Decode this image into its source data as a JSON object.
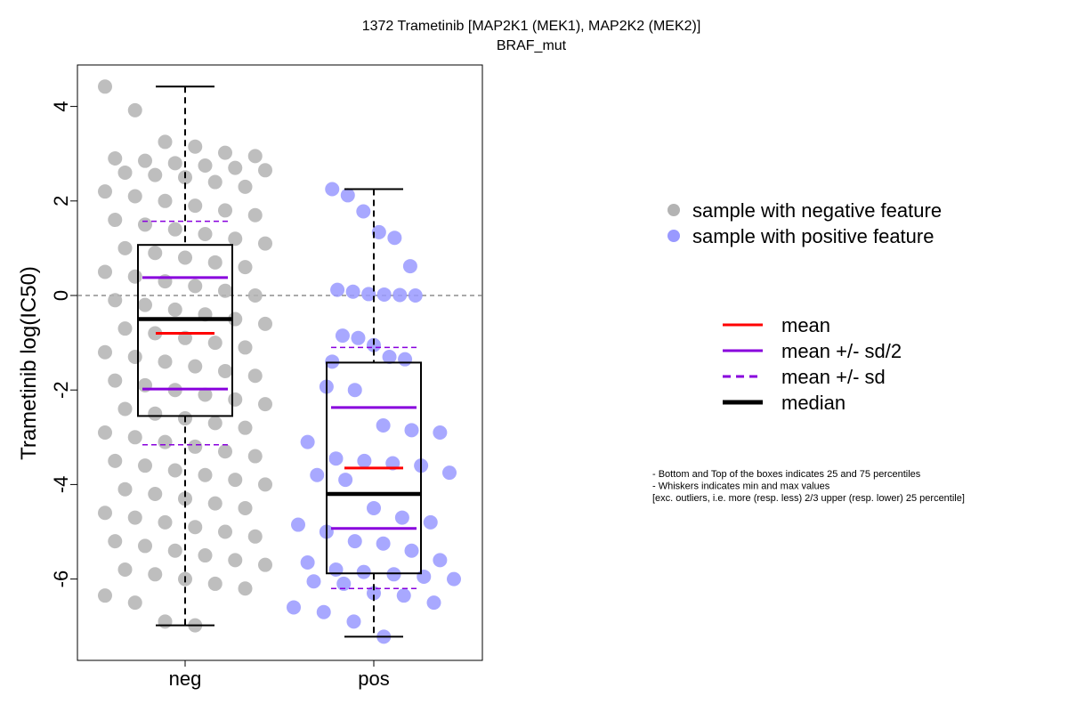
{
  "chart_data": {
    "type": "box",
    "title": "1372 Trametinib [MAP2K1 (MEK1), MAP2K2 (MEK2)]",
    "subtitle": "BRAF_mut",
    "ylabel": "Trametinib log(IC50)",
    "ylim": [
      -7.6,
      4.9
    ],
    "yticks": [
      -6,
      -4,
      -2,
      0,
      2,
      4
    ],
    "categories": [
      "neg",
      "pos"
    ],
    "reference_line": 0,
    "groups": [
      {
        "name": "neg",
        "color": "#b3b3b3",
        "min": -6.98,
        "q1": -2.55,
        "median": -0.5,
        "q3": 1.07,
        "max": 4.42,
        "mean": -0.8,
        "mean_minus_half_sd": -1.98,
        "mean_plus_half_sd": 0.38,
        "mean_minus_sd": -3.16,
        "mean_plus_sd": 1.57,
        "points": [
          4.42,
          3.92,
          3.25,
          3.15,
          3.02,
          2.95,
          2.9,
          2.85,
          2.8,
          2.75,
          2.7,
          2.65,
          2.6,
          2.55,
          2.5,
          2.4,
          2.3,
          2.2,
          2.1,
          2.0,
          1.9,
          1.8,
          1.7,
          1.6,
          1.5,
          1.4,
          1.3,
          1.2,
          1.1,
          1.0,
          0.9,
          0.8,
          0.7,
          0.6,
          0.5,
          0.4,
          0.3,
          0.2,
          0.1,
          0.0,
          -0.1,
          -0.2,
          -0.3,
          -0.4,
          -0.5,
          -0.6,
          -0.7,
          -0.8,
          -0.9,
          -1.0,
          -1.1,
          -1.2,
          -1.3,
          -1.4,
          -1.5,
          -1.6,
          -1.7,
          -1.8,
          -1.9,
          -2.0,
          -2.1,
          -2.2,
          -2.3,
          -2.4,
          -2.5,
          -2.6,
          -2.7,
          -2.8,
          -2.9,
          -3.0,
          -3.1,
          -3.2,
          -3.3,
          -3.4,
          -3.5,
          -3.6,
          -3.7,
          -3.8,
          -3.9,
          -4.0,
          -4.1,
          -4.2,
          -4.3,
          -4.4,
          -4.5,
          -4.6,
          -4.7,
          -4.8,
          -4.9,
          -5.0,
          -5.1,
          -5.2,
          -5.3,
          -5.4,
          -5.5,
          -5.6,
          -5.7,
          -5.8,
          -5.9,
          -6.0,
          -6.1,
          -6.2,
          -6.35,
          -6.5,
          -6.9,
          -6.98
        ]
      },
      {
        "name": "pos",
        "color": "#9999ff",
        "min": -7.22,
        "q1": -5.88,
        "median": -4.2,
        "q3": -1.42,
        "max": 2.25,
        "mean": -3.65,
        "mean_minus_half_sd": -4.93,
        "mean_plus_half_sd": -2.37,
        "mean_minus_sd": -6.2,
        "mean_plus_sd": -1.1,
        "points": [
          2.25,
          2.12,
          1.78,
          1.34,
          1.22,
          0.62,
          0.12,
          0.08,
          0.03,
          0.02,
          0.01,
          0.0,
          -0.85,
          -0.9,
          -1.05,
          -1.3,
          -1.35,
          -1.4,
          -1.93,
          -2.0,
          -2.75,
          -2.85,
          -2.9,
          -3.1,
          -3.45,
          -3.5,
          -3.55,
          -3.6,
          -3.75,
          -3.8,
          -3.9,
          -4.5,
          -4.7,
          -4.8,
          -4.85,
          -5.0,
          -5.2,
          -5.25,
          -5.4,
          -5.6,
          -5.65,
          -5.8,
          -5.85,
          -5.9,
          -5.95,
          -6.0,
          -6.05,
          -6.1,
          -6.3,
          -6.35,
          -6.5,
          -6.6,
          -6.7,
          -6.9,
          -7.22
        ]
      }
    ],
    "legend_points": {
      "position": "right",
      "items": [
        {
          "label": "sample with negative feature",
          "color": "#b3b3b3"
        },
        {
          "label": "sample with positive feature",
          "color": "#9999ff"
        }
      ]
    },
    "legend_lines": {
      "position": "right",
      "items": [
        {
          "label": "mean",
          "color": "#ff0000",
          "style": "solid"
        },
        {
          "label": "mean +/- sd/2",
          "color": "#8800dd",
          "style": "solid"
        },
        {
          "label": "mean +/- sd",
          "color": "#8800dd",
          "style": "dashed"
        },
        {
          "label": "median",
          "color": "#000000",
          "style": "thick"
        }
      ]
    },
    "notes": [
      "- Bottom and Top of the boxes indicates 25 and 75 percentiles",
      "- Whiskers indicates min and max values",
      "[exc. outliers, i.e. more (resp. less) 2/3 upper (resp. lower) 25 percentile]"
    ]
  }
}
